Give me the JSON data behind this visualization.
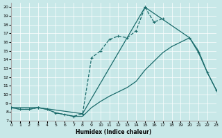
{
  "xlabel": "Humidex (Indice chaleur)",
  "bg_color": "#c8e8e8",
  "line_color": "#1a6b6b",
  "xlim": [
    0,
    23
  ],
  "ylim": [
    7,
    20.5
  ],
  "xticks": [
    0,
    1,
    2,
    3,
    4,
    5,
    6,
    7,
    8,
    9,
    10,
    11,
    12,
    13,
    14,
    15,
    16,
    17,
    18,
    19,
    20,
    21,
    22,
    23
  ],
  "yticks": [
    7,
    8,
    9,
    10,
    11,
    12,
    13,
    14,
    15,
    16,
    17,
    18,
    19,
    20
  ],
  "line_dashed_x": [
    0,
    1,
    2,
    3,
    4,
    5,
    6,
    7,
    8,
    9,
    10,
    11,
    12,
    13,
    14,
    15,
    16,
    17
  ],
  "line_dashed_y": [
    8.5,
    8.3,
    8.3,
    8.5,
    8.3,
    7.9,
    7.7,
    7.5,
    7.8,
    14.2,
    15.0,
    16.3,
    16.7,
    16.5,
    17.3,
    20.0,
    18.3,
    18.7
  ],
  "line_triangle_x": [
    0,
    3,
    8,
    15,
    20,
    21,
    22,
    23
  ],
  "line_triangle_y": [
    8.5,
    8.5,
    7.8,
    20.0,
    16.5,
    14.8,
    12.5,
    10.5
  ],
  "line_gradual_x": [
    0,
    1,
    2,
    3,
    4,
    5,
    6,
    7,
    8,
    9,
    10,
    11,
    12,
    13,
    14,
    15,
    16,
    17,
    18,
    19,
    20,
    21,
    22,
    23
  ],
  "line_gradual_y": [
    8.5,
    8.3,
    8.3,
    8.5,
    8.3,
    7.9,
    7.7,
    7.5,
    7.5,
    8.5,
    9.2,
    9.8,
    10.3,
    10.8,
    11.5,
    12.8,
    13.8,
    14.8,
    15.5,
    16.0,
    16.5,
    15.0,
    12.5,
    10.5
  ]
}
